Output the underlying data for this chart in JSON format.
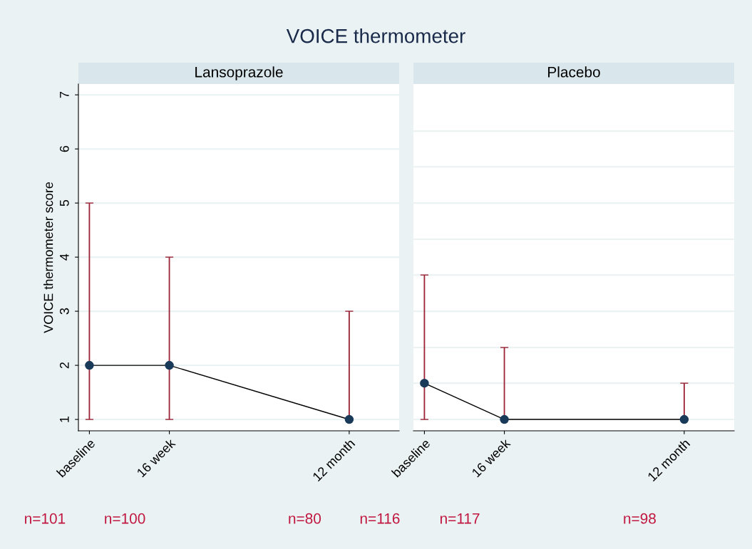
{
  "chart_data": [
    {
      "type": "line",
      "title": "VOICE thermometer",
      "subtitle": "Lansoprazole",
      "ylabel": "VOICE thermometer score",
      "categories": [
        "baseline",
        null,
        null,
        null,
        "16 week",
        null,
        null,
        null,
        null,
        null,
        null,
        null,
        null,
        "12 month"
      ],
      "ylim": [
        0.79,
        7.2
      ],
      "yticks": [
        1,
        2,
        3,
        4,
        5,
        6,
        7
      ],
      "grid": "y",
      "marker": "circle",
      "line_style": "solid",
      "series": [
        {
          "color": "#000000",
          "values": [
            2,
            null,
            null,
            null,
            2,
            null,
            null,
            null,
            null,
            null,
            null,
            null,
            null,
            1
          ],
          "errors": [
            [
              1,
              5
            ],
            null,
            null,
            null,
            [
              1,
              4
            ],
            null,
            null,
            null,
            null,
            null,
            null,
            null,
            null,
            [
              1,
              3
            ]
          ]
        }
      ],
      "annotations": [
        "n=101",
        "n=100",
        "n=80"
      ]
    },
    {
      "type": "line",
      "subtitle": "Placebo",
      "categories": [
        "baseline",
        null,
        null,
        null,
        "16 week",
        null,
        null,
        null,
        null,
        null,
        null,
        null,
        null,
        "12 month"
      ],
      "ylim": [
        0.79,
        7.2
      ],
      "yticks": [
        {
          "value": 1,
          "label": null
        },
        {
          "value": 1.67,
          "label": null
        },
        {
          "value": 2.33,
          "label": null
        },
        {
          "value": 3,
          "label": null
        },
        {
          "value": 3.67,
          "label": null
        },
        {
          "value": 4.33,
          "label": null
        },
        {
          "value": 5,
          "label": null
        },
        {
          "value": 5.67,
          "label": null
        },
        {
          "value": 6.33,
          "label": null
        }
      ],
      "tick_labels": "x",
      "grid": "y",
      "marker": "circle",
      "line_style": "solid",
      "series": [
        {
          "color": "#000000",
          "values": [
            1.67,
            null,
            null,
            null,
            1,
            null,
            null,
            null,
            null,
            null,
            null,
            null,
            null,
            1
          ],
          "errors": [
            [
              1,
              3.67
            ],
            null,
            null,
            null,
            [
              1,
              2.33
            ],
            null,
            null,
            null,
            null,
            null,
            null,
            null,
            null,
            [
              1,
              1.67
            ]
          ]
        }
      ],
      "annotations": [
        "n=116",
        "n=117",
        "n=98"
      ]
    }
  ]
}
